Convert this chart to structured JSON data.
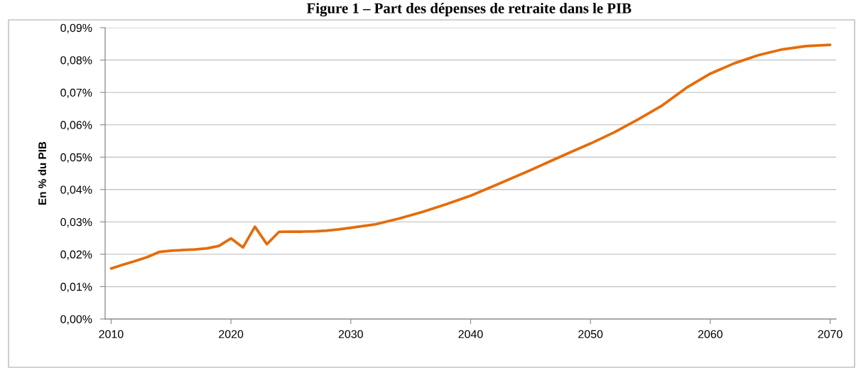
{
  "chart_data": {
    "type": "line",
    "title": "Figure 1 – Part des dépenses de retraite dans le PIB",
    "ylabel": "En % du PIB",
    "x": [
      2010,
      2011,
      2012,
      2013,
      2014,
      2015,
      2016,
      2017,
      2018,
      2019,
      2020,
      2021,
      2022,
      2023,
      2024,
      2025,
      2026,
      2027,
      2028,
      2029,
      2030,
      2032,
      2034,
      2036,
      2038,
      2040,
      2042,
      2045,
      2048,
      2050,
      2052,
      2054,
      2056,
      2058,
      2060,
      2062,
      2064,
      2066,
      2068,
      2070
    ],
    "series": [
      {
        "color": "#e46c0a",
        "values": [
          0.0156,
          0.0168,
          0.0179,
          0.0191,
          0.0207,
          0.0211,
          0.0213,
          0.0215,
          0.0218,
          0.0226,
          0.0249,
          0.0221,
          0.0285,
          0.0231,
          0.0269,
          0.027,
          0.027,
          0.0271,
          0.0273,
          0.0277,
          0.0282,
          0.0292,
          0.031,
          0.0331,
          0.0355,
          0.0381,
          0.0412,
          0.046,
          0.051,
          0.0542,
          0.0577,
          0.0617,
          0.066,
          0.0714,
          0.0758,
          0.079,
          0.0815,
          0.0833,
          0.0843,
          0.0847
        ]
      }
    ],
    "xlim": [
      2009.5,
      2070.5
    ],
    "xticks": [
      2010,
      2020,
      2030,
      2040,
      2050,
      2060,
      2070
    ],
    "ylim": [
      0,
      0.09
    ],
    "yticks": [
      {
        "value": 0,
        "label": "0,00%"
      },
      {
        "value": 0.01,
        "label": "0,01%"
      },
      {
        "value": 0.02,
        "label": "0,02%"
      },
      {
        "value": 0.03,
        "label": "0,03%"
      },
      {
        "value": 0.04,
        "label": "0,04%"
      },
      {
        "value": 0.05,
        "label": "0,05%"
      },
      {
        "value": 0.06,
        "label": "0,06%"
      },
      {
        "value": 0.07,
        "label": "0,07%"
      },
      {
        "value": 0.08,
        "label": "0,08%"
      },
      {
        "value": 0.09,
        "label": "0,09%"
      }
    ],
    "grid": "y",
    "marker": "none",
    "line_style": "solid"
  }
}
